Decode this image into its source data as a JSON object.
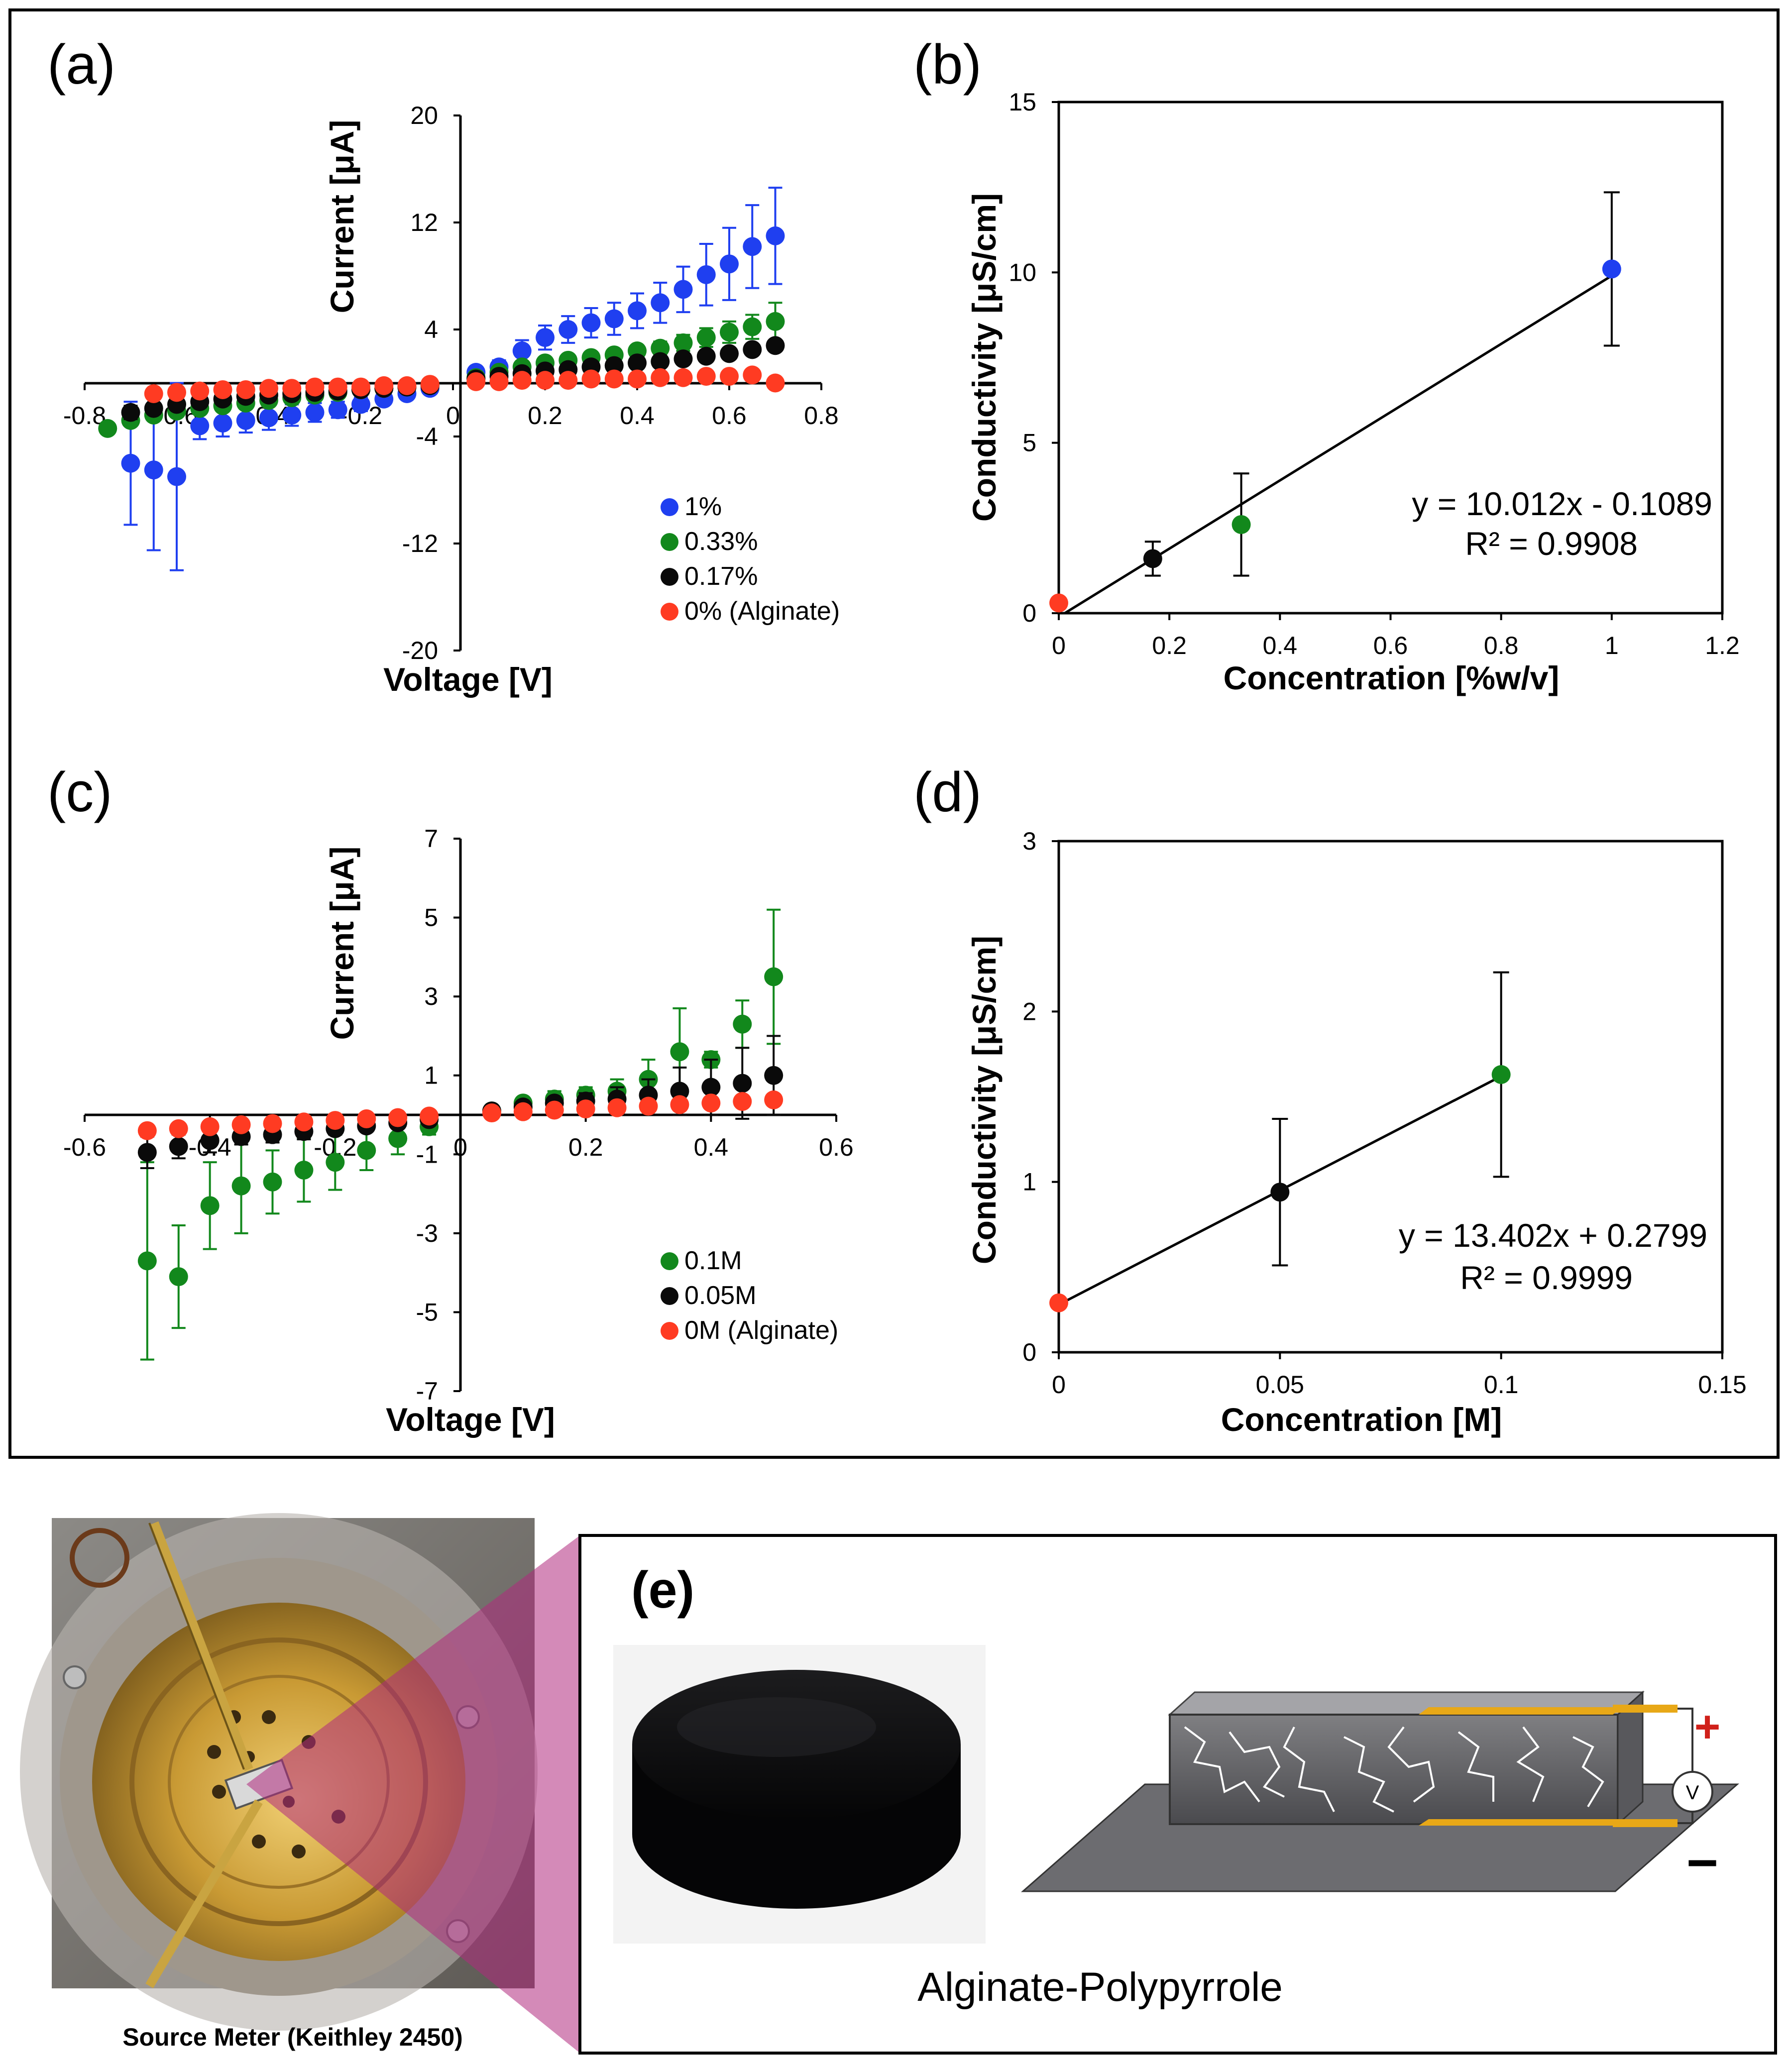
{
  "colors": {
    "blue": "#1f3ff0",
    "green": "#12881c",
    "black": "#0a0a0a",
    "red": "#ff3b22"
  },
  "panels": {
    "a": "(a)",
    "b": "(b)",
    "c": "(c)",
    "d": "(d)",
    "e": "(e)"
  },
  "chart_data": [
    {
      "id": "a",
      "type": "scatter",
      "title": "",
      "xlabel": "Voltage [V]",
      "ylabel": "Current [μA]",
      "xlim": [
        -0.8,
        0.8
      ],
      "ylim": [
        -20,
        20
      ],
      "xticks": [
        "-0.8",
        "-0.6",
        "-0.4",
        "-0.2",
        "0",
        "0.2",
        "0.4",
        "0.6",
        "0.8"
      ],
      "yticks": [
        "20",
        "12",
        "4",
        "-4",
        "-12",
        "-20"
      ],
      "legend_position": "bottom-right",
      "series": [
        {
          "name": "1%",
          "color_key": "blue",
          "x": [
            -0.7,
            -0.65,
            -0.6,
            -0.55,
            -0.5,
            -0.45,
            -0.4,
            -0.35,
            -0.3,
            -0.25,
            -0.2,
            -0.15,
            -0.1,
            -0.05,
            0.05,
            0.1,
            0.15,
            0.2,
            0.25,
            0.3,
            0.35,
            0.4,
            0.45,
            0.5,
            0.55,
            0.6,
            0.65,
            0.7
          ],
          "y": [
            -6,
            -6.5,
            -7,
            -3.2,
            -3,
            -2.8,
            -2.6,
            -2.4,
            -2.2,
            -2,
            -1.6,
            -1.2,
            -0.8,
            -0.4,
            0.8,
            1.2,
            2.4,
            3.4,
            4,
            4.5,
            4.8,
            5.4,
            6,
            7,
            8.1,
            8.9,
            10.2,
            11
          ],
          "err": [
            4.6,
            6,
            7,
            1,
            1,
            0.9,
            0.9,
            0.8,
            0.7,
            0.6,
            0.5,
            0.4,
            0.3,
            0.2,
            0.4,
            0.5,
            0.8,
            0.9,
            1,
            1.1,
            1.2,
            1.3,
            1.5,
            1.7,
            2.3,
            2.7,
            3.1,
            3.6
          ]
        },
        {
          "name": "0.33%",
          "color_key": "green",
          "x": [
            -0.75,
            -0.7,
            -0.65,
            -0.6,
            -0.55,
            -0.5,
            -0.45,
            -0.4,
            -0.35,
            -0.3,
            -0.25,
            -0.2,
            -0.15,
            -0.1,
            -0.05,
            0.05,
            0.1,
            0.15,
            0.2,
            0.25,
            0.3,
            0.35,
            0.4,
            0.45,
            0.5,
            0.55,
            0.6,
            0.65,
            0.7
          ],
          "y": [
            -3.4,
            -2.8,
            -2.4,
            -2.1,
            -1.9,
            -1.7,
            -1.5,
            -1.3,
            -1.1,
            -0.9,
            -0.7,
            -0.5,
            -0.4,
            -0.3,
            -0.2,
            0.4,
            0.8,
            1.2,
            1.5,
            1.7,
            1.9,
            2.1,
            2.4,
            2.6,
            3,
            3.4,
            3.8,
            4.2,
            4.6
          ],
          "err": [
            0.4,
            0.4,
            0.3,
            0.3,
            0.3,
            0.3,
            0.2,
            0.2,
            0.2,
            0.2,
            0.2,
            0.2,
            0.2,
            0.1,
            0.1,
            0.2,
            0.2,
            0.2,
            0.3,
            0.3,
            0.3,
            0.4,
            0.4,
            0.5,
            0.6,
            0.7,
            0.8,
            0.9,
            1.4
          ]
        },
        {
          "name": "0.17%",
          "color_key": "black",
          "x": [
            -0.7,
            -0.65,
            -0.6,
            -0.55,
            -0.5,
            -0.45,
            -0.4,
            -0.35,
            -0.3,
            -0.25,
            -0.2,
            -0.15,
            -0.1,
            -0.05,
            0.05,
            0.1,
            0.15,
            0.2,
            0.25,
            0.3,
            0.35,
            0.4,
            0.45,
            0.5,
            0.55,
            0.6,
            0.65,
            0.7
          ],
          "y": [
            -2.2,
            -1.9,
            -1.6,
            -1.4,
            -1.2,
            -1,
            -0.9,
            -0.8,
            -0.7,
            -0.6,
            -0.5,
            -0.4,
            -0.3,
            -0.2,
            0.3,
            0.5,
            0.7,
            0.9,
            1,
            1.2,
            1.3,
            1.5,
            1.6,
            1.8,
            2,
            2.2,
            2.5,
            2.8
          ],
          "err": [
            0.5,
            0.4,
            0.4,
            0.3,
            0.3,
            0.3,
            0.2,
            0.2,
            0.2,
            0.2,
            0.2,
            0.1,
            0.1,
            0.1,
            0.1,
            0.1,
            0.1,
            0.2,
            0.2,
            0.2,
            0.2,
            0.2,
            0.3,
            0.3,
            0.3,
            0.3,
            0.3,
            0.4
          ]
        },
        {
          "name": "0% (Alginate)",
          "color_key": "red",
          "x": [
            -0.65,
            -0.6,
            -0.55,
            -0.5,
            -0.45,
            -0.4,
            -0.35,
            -0.3,
            -0.25,
            -0.2,
            -0.15,
            -0.1,
            -0.05,
            0.05,
            0.1,
            0.15,
            0.2,
            0.25,
            0.3,
            0.35,
            0.4,
            0.45,
            0.5,
            0.55,
            0.6,
            0.65,
            0.7
          ],
          "y": [
            -0.8,
            -0.7,
            -0.6,
            -0.5,
            -0.5,
            -0.4,
            -0.4,
            -0.3,
            -0.3,
            -0.3,
            -0.2,
            -0.2,
            -0.1,
            0.1,
            0.1,
            0.2,
            0.2,
            0.2,
            0.3,
            0.3,
            0.3,
            0.4,
            0.4,
            0.5,
            0.5,
            0.6,
            0
          ],
          "err": [
            0.1,
            0.1,
            0.1,
            0.1,
            0.1,
            0.1,
            0.1,
            0.1,
            0.1,
            0.1,
            0.1,
            0.1,
            0.1,
            0.1,
            0.1,
            0.1,
            0.1,
            0.1,
            0.1,
            0.1,
            0.1,
            0.1,
            0.1,
            0.1,
            0.1,
            0.1,
            0.1
          ]
        }
      ]
    },
    {
      "id": "b",
      "type": "scatter",
      "title": "",
      "xlabel": "Concentration [%w/v]",
      "ylabel": "Conductivity [μS/cm]",
      "xlim": [
        0,
        1.2
      ],
      "ylim": [
        0,
        15
      ],
      "xticks": [
        "0",
        "0.2",
        "0.4",
        "0.6",
        "0.8",
        "1",
        "1.2"
      ],
      "yticks": [
        "15",
        "10",
        "5",
        "0"
      ],
      "points": [
        {
          "x": 0,
          "y": 0.3,
          "err": 0,
          "color_key": "red"
        },
        {
          "x": 0.17,
          "y": 1.6,
          "err": 0.5,
          "color_key": "black"
        },
        {
          "x": 0.33,
          "y": 2.6,
          "err": 1.5,
          "color_key": "green"
        },
        {
          "x": 1,
          "y": 10.1,
          "err": 2.25,
          "color_key": "blue"
        }
      ],
      "fit": {
        "slope": 10.012,
        "intercept": -0.1089,
        "x": [
          0,
          1
        ]
      },
      "equation": "y = 10.012x - 0.1089",
      "r2": "R² = 0.9908"
    },
    {
      "id": "c",
      "type": "scatter",
      "title": "",
      "xlabel": "Voltage [V]",
      "ylabel": "Current [μA]",
      "xlim": [
        -0.6,
        0.6
      ],
      "ylim": [
        -7,
        7
      ],
      "xticks": [
        "-0.6",
        "-0.4",
        "-0.2",
        "0",
        "0.2",
        "0.4",
        "0.6"
      ],
      "yticks": [
        "7",
        "5",
        "3",
        "1",
        "-1",
        "-3",
        "-5",
        "-7"
      ],
      "legend_position": "bottom-right",
      "series": [
        {
          "name": "0.1M",
          "color_key": "green",
          "x": [
            -0.5,
            -0.45,
            -0.4,
            -0.35,
            -0.3,
            -0.25,
            -0.2,
            -0.15,
            -0.1,
            -0.05,
            0.05,
            0.1,
            0.15,
            0.2,
            0.25,
            0.3,
            0.35,
            0.4,
            0.45,
            0.5
          ],
          "y": [
            -3.7,
            -4.1,
            -2.3,
            -1.8,
            -1.7,
            -1.4,
            -1.2,
            -0.9,
            -0.6,
            -0.3,
            0.1,
            0.3,
            0.4,
            0.5,
            0.6,
            0.9,
            1.6,
            1.4,
            2.3,
            3.5
          ],
          "err": [
            2.5,
            1.3,
            1.1,
            1.2,
            0.8,
            0.8,
            0.7,
            0.5,
            0.4,
            0.2,
            0.1,
            0.1,
            0.2,
            0.2,
            0.3,
            0.5,
            1.1,
            0.2,
            0.6,
            1.7
          ]
        },
        {
          "name": "0.05M",
          "color_key": "black",
          "x": [
            -0.5,
            -0.45,
            -0.4,
            -0.35,
            -0.3,
            -0.25,
            -0.2,
            -0.15,
            -0.1,
            -0.05,
            0.05,
            0.1,
            0.15,
            0.2,
            0.25,
            0.3,
            0.35,
            0.4,
            0.45,
            0.5
          ],
          "y": [
            -0.95,
            -0.8,
            -0.65,
            -0.55,
            -0.5,
            -0.42,
            -0.35,
            -0.28,
            -0.2,
            -0.12,
            0.1,
            0.2,
            0.3,
            0.35,
            0.4,
            0.5,
            0.6,
            0.7,
            0.8,
            1
          ],
          "err": [
            0.4,
            0.3,
            0.3,
            0.2,
            0.2,
            0.2,
            0.15,
            0.1,
            0.1,
            0.1,
            0.1,
            0.1,
            0.1,
            0.2,
            0.3,
            0.4,
            0.6,
            0.7,
            0.9,
            1
          ]
        },
        {
          "name": "0M (Alginate)",
          "color_key": "red",
          "x": [
            -0.5,
            -0.45,
            -0.4,
            -0.35,
            -0.3,
            -0.25,
            -0.2,
            -0.15,
            -0.1,
            -0.05,
            0.05,
            0.1,
            0.15,
            0.2,
            0.25,
            0.3,
            0.35,
            0.4,
            0.45,
            0.5
          ],
          "y": [
            -0.4,
            -0.35,
            -0.3,
            -0.25,
            -0.22,
            -0.18,
            -0.14,
            -0.1,
            -0.07,
            -0.03,
            0.05,
            0.08,
            0.12,
            0.15,
            0.18,
            0.22,
            0.26,
            0.3,
            0.34,
            0.38
          ],
          "err": [
            0.05,
            0.05,
            0.05,
            0.05,
            0.05,
            0.05,
            0.05,
            0.05,
            0.05,
            0.05,
            0.05,
            0.05,
            0.05,
            0.05,
            0.05,
            0.05,
            0.05,
            0.05,
            0.05,
            0.05
          ]
        }
      ]
    },
    {
      "id": "d",
      "type": "scatter",
      "title": "",
      "xlabel": "Concentration [M]",
      "ylabel": "Conductivity [μS/cm]",
      "xlim": [
        0,
        0.15
      ],
      "ylim": [
        0,
        3
      ],
      "xticks": [
        "0",
        "0.05",
        "0.1",
        "0.15"
      ],
      "yticks": [
        "3",
        "2",
        "1",
        "0"
      ],
      "points": [
        {
          "x": 0,
          "y": 0.29,
          "err": 0,
          "color_key": "red"
        },
        {
          "x": 0.05,
          "y": 0.94,
          "err": 0.43,
          "color_key": "black"
        },
        {
          "x": 0.1,
          "y": 1.63,
          "err": 0.6,
          "color_key": "green"
        }
      ],
      "fit": {
        "slope": 13.402,
        "intercept": 0.2799,
        "x": [
          0,
          0.1
        ]
      },
      "equation": "y = 13.402x + 0.2799",
      "r2": "R² = 0.9999"
    }
  ],
  "bottom": {
    "caption": "Source Meter (Keithley 2450)",
    "sample_label": "Alginate-Polypyrrole",
    "plus": "+",
    "minus": "−",
    "voltmeter": "V"
  }
}
